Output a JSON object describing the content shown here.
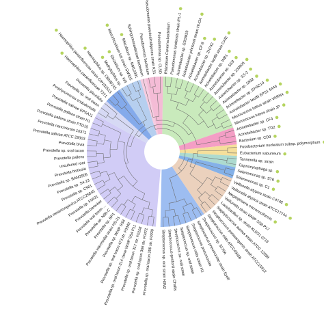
{
  "figure": {
    "leaves": [
      {
        "label": "Prevotella sp. oral taxon 299 str. F0039",
        "clade": "prevotella",
        "dot": false
      },
      {
        "label": "Prevotella sp. oral taxon 306 str. F0472",
        "clade": "prevotella",
        "dot": false
      },
      {
        "label": "Prevotella sp. oral taxon 317 str. F0108",
        "clade": "prevotella",
        "dot": false
      },
      {
        "label": "Prevotella sp. oral taxon 314 clone WWP SS4 P11",
        "clade": "prevotella",
        "dot": false
      },
      {
        "label": "Prevotella sp. oral taxon 473 str. F0040",
        "clade": "prevotella",
        "dot": false
      },
      {
        "label": "Prevotella sp. WWP SS8",
        "clade": "prevotella",
        "dot": false
      },
      {
        "label": "Prevotella intermedia strain HS-21",
        "clade": "prevotella",
        "dot": false
      },
      {
        "label": "Prevotella sp. BP1",
        "clade": "prevotella",
        "dot": false
      },
      {
        "label": "Prevotella sp. N80-C",
        "clade": "prevotella",
        "dot": false
      },
      {
        "label": "Prevotella oral taxon ...",
        "clade": "prevotella",
        "dot": false
      },
      {
        "label": "Prevotella baroniae",
        "clade": "prevotella",
        "dot": false
      },
      {
        "label": "Prevotella sp. F0431",
        "clade": "prevotella",
        "dot": false
      },
      {
        "label": "Prevotella melaninogenica ATCC25845",
        "clade": "prevotella",
        "dot": false
      },
      {
        "label": "Prevotella sp. C561",
        "clade": "prevotella",
        "dot": false
      },
      {
        "label": "Prevotella sp. S4-23",
        "clade": "prevotella",
        "dot": false
      },
      {
        "label": "Prevotella sp. BAM2505",
        "clade": "prevotella",
        "dot": false
      },
      {
        "label": "Prevotella histicola",
        "clade": "prevotella",
        "dot": false
      },
      {
        "label": "uncultured root",
        "clade": "prevotella",
        "dot": false
      },
      {
        "label": "Prevotella pallens",
        "clade": "prevotella",
        "dot": false
      },
      {
        "label": "Prevotella sp. oral taxon",
        "clade": "prevotella",
        "dot": false
      },
      {
        "label": "Prevotella bivia",
        "clade": "prevotella",
        "dot": false
      },
      {
        "label": "Prevotella salivae ATCC 29303",
        "clade": "prevotella",
        "dot": false
      },
      {
        "label": "Prevotella nanceiensis 10371",
        "clade": "prevotella",
        "dot": false
      },
      {
        "label": "Prevotella pallens strain PTD15",
        "clade": "prevotella",
        "dot": false
      },
      {
        "label": "Prevotella pallens strain H1",
        "clade": "prevotella",
        "dot": false
      },
      {
        "label": "Prevotella salivae EPSA11",
        "clade": "prevotella",
        "dot": false
      },
      {
        "label": "Porphyromonas endodontalis",
        "clade": "porphyro",
        "dot": false
      },
      {
        "label": "Prevotella sp. oral taxon",
        "clade": "porphyro",
        "dot": false
      },
      {
        "label": "Prevotella pleuritidis",
        "clade": "porphyro",
        "dot": false
      },
      {
        "label": "Haemophilus parainfluenzae T3T1",
        "clade": "haemophilus",
        "dot": true
      },
      {
        "label": "Haemophilus parainfluenzae strain CIP102513",
        "clade": "haemophilus",
        "dot": true
      },
      {
        "label": "Haemophilus sp. CBMB145",
        "clade": "haemophilus",
        "dot": true
      },
      {
        "label": "Methylophilus sp.",
        "clade": "rhizobium",
        "dot": true
      },
      {
        "label": "Rhizobium sp. W3",
        "clade": "rhizobium",
        "dot": true
      },
      {
        "label": "Mesorhizobium loti strain SW325",
        "clade": "rhizobium",
        "dot": true
      },
      {
        "label": "Rhizobium sp. RM12001",
        "clade": "rhizobium",
        "dot": true
      },
      {
        "label": "Sphingomonadaceae bacterium",
        "clade": "sphingo",
        "dot": false
      },
      {
        "label": "Pseudomonas bacterium",
        "clade": "pseudomonas",
        "dot": false
      },
      {
        "label": "Pseudomonas pseudoalcaligenes strain KS1",
        "clade": "pseudomonas",
        "dot": true
      },
      {
        "label": "Pseudomonas sp. CLSD",
        "clade": "pseudomonas",
        "dot": false
      },
      {
        "label": "Rhizobium Caverna bacterium",
        "clade": "green",
        "dot": false
      },
      {
        "label": "Pseudomonas lundensis strain IPL-1",
        "clade": "green",
        "dot": true
      },
      {
        "label": "Acinetobacter sp. G3DM29",
        "clade": "green",
        "dot": false
      },
      {
        "label": "Acinetobacter johnsonii strain HI-O4",
        "clade": "green",
        "dot": true
      },
      {
        "label": "Acinetobacter sp. CF-8",
        "clade": "green",
        "dot": true
      },
      {
        "label": "Acinetobacter sp. ZH742",
        "clade": "green",
        "dot": true
      },
      {
        "label": "Acinetobacter lwoffii strain CAIE",
        "clade": "green",
        "dot": true
      },
      {
        "label": "Acinetobacter sp. WB1",
        "clade": "green",
        "dot": true
      },
      {
        "label": "Acinetobacter sp. SS9",
        "clade": "green",
        "dot": true
      },
      {
        "label": "Acinetobacter sp. 200906",
        "clade": "green",
        "dot": true
      },
      {
        "label": "Acinetobacter sp. SS-2",
        "clade": "green",
        "dot": true
      },
      {
        "label": "Acinetobacter sp. 5832",
        "clade": "green",
        "dot": true
      },
      {
        "label": "Acinetobacter sp. EPSC10",
        "clade": "green",
        "dot": true
      },
      {
        "label": "Acinetobacter lwoffii EPS1 6446",
        "clade": "green",
        "dot": true
      },
      {
        "label": "Micrococcus luteus strain VARN4",
        "clade": "green",
        "dot": true
      },
      {
        "label": "Micrococcus luteus strain JP",
        "clade": "green",
        "dot": true
      },
      {
        "label": "Acinetobacter sp. CF4",
        "clade": "pink",
        "dot": true
      },
      {
        "label": "Acinetobacter sp. TD2",
        "clade": "pink",
        "dot": true
      },
      {
        "label": "Bacterium sp. CD9",
        "clade": "pink",
        "dot": true
      },
      {
        "label": "Fusobacterium nucleatum subsp. polymorphum",
        "clade": "yellow",
        "dot": true
      },
      {
        "label": "Eubacterium saburreum",
        "clade": "yellow",
        "dot": true
      },
      {
        "label": "Tannerella sp. strain",
        "clade": "teal",
        "dot": false
      },
      {
        "label": "Capnocytophaga sp.",
        "clade": "teal",
        "dot": true
      },
      {
        "label": "Selenomonas sp. ST6",
        "clade": "blue2",
        "dot": true
      },
      {
        "label": "Selenomonas sp. C1",
        "clade": "blue2",
        "dot": true
      },
      {
        "label": "Veillonella atypica strain C4748",
        "clade": "tan",
        "dot": true
      },
      {
        "label": "Veillonella atypica strain ATCC17744",
        "clade": "tan",
        "dot": true
      },
      {
        "label": "Megasphaera micronuciformis",
        "clade": "tan",
        "dot": true
      },
      {
        "label": "Veillonella strain WWP SS8 P17",
        "clade": "tan",
        "dot": false
      },
      {
        "label": "Lactobacillus sp. strain KLDS1 0719",
        "clade": "tan",
        "dot": false
      },
      {
        "label": "Staphylococcus aureus strain ATCC 12598",
        "clade": "tan",
        "dot": false
      },
      {
        "label": "Streptococcus parasanguinis strain ATCC15912",
        "clade": "tan",
        "dot": false
      },
      {
        "label": "Streptococcus mitis ATCC49456",
        "clade": "tan",
        "dot": false
      },
      {
        "label": "Streptococcus sp. 3170A",
        "clade": "streptococcus",
        "dot": false
      },
      {
        "label": "Streptococcus pneumoniae strain Eyeff",
        "clade": "streptococcus",
        "dot": false
      },
      {
        "label": "Streptococcus pneumoniae",
        "clade": "streptococcus",
        "dot": false
      },
      {
        "label": "Streptococcus mitis strain H1",
        "clade": "streptococcus",
        "dot": false
      },
      {
        "label": "Streptococcus sp. oral strain",
        "clade": "streptococcus",
        "dot": false
      },
      {
        "label": "Streptococcus sp. oral strain",
        "clade": "streptococcus",
        "dot": false
      },
      {
        "label": "Streptococcus gordonii strain Challis",
        "clade": "streptococcus",
        "dot": false
      },
      {
        "label": "Streptococcus sp. oral strain H3M2",
        "clade": "streptococcus",
        "dot": false
      }
    ],
    "clade_colors": {
      "prevotella": "#c9c3f5",
      "porphyro": "#cfd2f2",
      "haemophilus": "#6f9be8",
      "rhizobium": "#a9c7ec",
      "sphingo": "#f3c3da",
      "pseudomonas": "#f2b0cf",
      "green": "#bfe6b0",
      "pink": "#f28dbb",
      "yellow": "#f3d98a",
      "teal": "#9fd3c7",
      "blue2": "#6fa3e4",
      "tan": "#e7c9b1",
      "streptococcus": "#8cb2ef"
    },
    "dot_color": "#b5d45f",
    "branch_color": "#6a6a6a"
  }
}
